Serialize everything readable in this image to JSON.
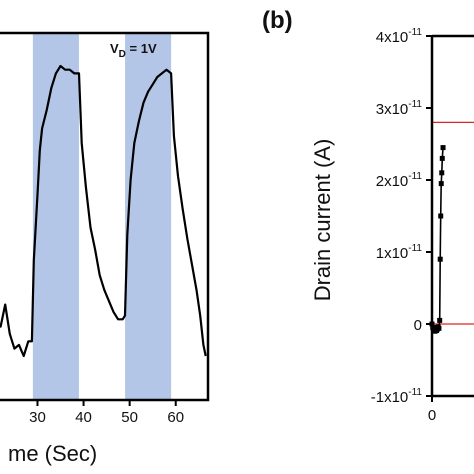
{
  "chart_data": [
    {
      "type": "line",
      "panel_label": "",
      "xlabel": "me (Sec)",
      "ylabel": "",
      "xlim": [
        21,
        67
      ],
      "ylim": [
        0,
        1
      ],
      "x_ticks": [
        30,
        40,
        50,
        60
      ],
      "x_tick_labels": [
        "30",
        "40",
        "50",
        "60"
      ],
      "annotation": {
        "prefix": "V",
        "sub": "D",
        "suffix": " = 1V"
      },
      "shaded_intervals": [
        [
          29,
          39
        ],
        [
          49,
          59
        ]
      ],
      "shade_color": "#b4c6e7",
      "series": [
        {
          "color": "#000000",
          "points": [
            [
              21,
              0.22
            ],
            [
              22,
              0.2
            ],
            [
              23,
              0.26
            ],
            [
              24,
              0.18
            ],
            [
              25,
              0.14
            ],
            [
              26,
              0.15
            ],
            [
              27,
              0.12
            ],
            [
              28,
              0.16
            ],
            [
              28.8,
              0.16
            ],
            [
              29.2,
              0.38
            ],
            [
              30,
              0.56
            ],
            [
              30.5,
              0.68
            ],
            [
              31,
              0.74
            ],
            [
              32,
              0.79
            ],
            [
              33,
              0.85
            ],
            [
              34,
              0.89
            ],
            [
              35,
              0.91
            ],
            [
              36,
              0.9
            ],
            [
              37,
              0.9
            ],
            [
              38,
              0.89
            ],
            [
              39,
              0.89
            ],
            [
              39.6,
              0.7
            ],
            [
              40.5,
              0.58
            ],
            [
              41.5,
              0.47
            ],
            [
              42.5,
              0.41
            ],
            [
              43.5,
              0.34
            ],
            [
              44.5,
              0.3
            ],
            [
              45.5,
              0.27
            ],
            [
              46.5,
              0.24
            ],
            [
              47.5,
              0.22
            ],
            [
              48.5,
              0.22
            ],
            [
              49,
              0.23
            ],
            [
              49.5,
              0.45
            ],
            [
              50.2,
              0.6
            ],
            [
              51,
              0.7
            ],
            [
              52,
              0.76
            ],
            [
              53,
              0.81
            ],
            [
              54,
              0.84
            ],
            [
              55,
              0.86
            ],
            [
              56,
              0.88
            ],
            [
              57,
              0.89
            ],
            [
              58,
              0.9
            ],
            [
              59,
              0.89
            ],
            [
              59.6,
              0.72
            ],
            [
              60.5,
              0.61
            ],
            [
              61.5,
              0.52
            ],
            [
              62.5,
              0.44
            ],
            [
              63.5,
              0.37
            ],
            [
              64.5,
              0.3
            ],
            [
              65.3,
              0.23
            ],
            [
              66,
              0.15
            ],
            [
              66.5,
              0.12
            ]
          ]
        }
      ]
    },
    {
      "type": "line",
      "panel_label": "(b)",
      "xlabel": "",
      "ylabel": "Drain current (A)",
      "xlim": [
        -3.5,
        9
      ],
      "ylim": [
        -1e-11,
        4e-11
      ],
      "x_ticks": [
        0
      ],
      "x_tick_labels": [
        "0"
      ],
      "y_ticks": [
        -1e-11,
        0,
        1e-11,
        2e-11,
        3e-11,
        4e-11
      ],
      "y_tick_labels": [
        {
          "mant": "-1x10",
          "exp": "-11"
        },
        {
          "mant": "0",
          "exp": ""
        },
        {
          "mant": "1x10",
          "exp": "-11"
        },
        {
          "mant": "2x10",
          "exp": "-11"
        },
        {
          "mant": "3x10",
          "exp": "-11"
        },
        {
          "mant": "4x10",
          "exp": "-11"
        }
      ],
      "reference_lines": [
        {
          "y": 2.8e-11,
          "color": "#d62728"
        },
        {
          "y": 0,
          "color": "#d62728"
        }
      ],
      "series": [
        {
          "color": "#000000",
          "marker": "square",
          "points": [
            [
              0.0,
              0.0
            ],
            [
              0.3,
              -5e-13
            ],
            [
              0.6,
              -8e-13
            ],
            [
              0.9,
              -6e-13
            ],
            [
              1.2,
              -1e-12
            ],
            [
              1.5,
              -5e-13
            ],
            [
              1.8,
              -9e-13
            ],
            [
              2.1,
              -7e-13
            ],
            [
              2.4,
              -4e-13
            ],
            [
              2.7,
              -6e-13
            ],
            [
              3.0,
              5e-13
            ],
            [
              3.2,
              9e-12
            ],
            [
              3.4,
              1.5e-11
            ],
            [
              3.6,
              1.95e-11
            ],
            [
              3.8,
              2.1e-11
            ],
            [
              4.0,
              2.3e-11
            ],
            [
              4.3,
              2.45e-11
            ]
          ]
        }
      ]
    }
  ]
}
